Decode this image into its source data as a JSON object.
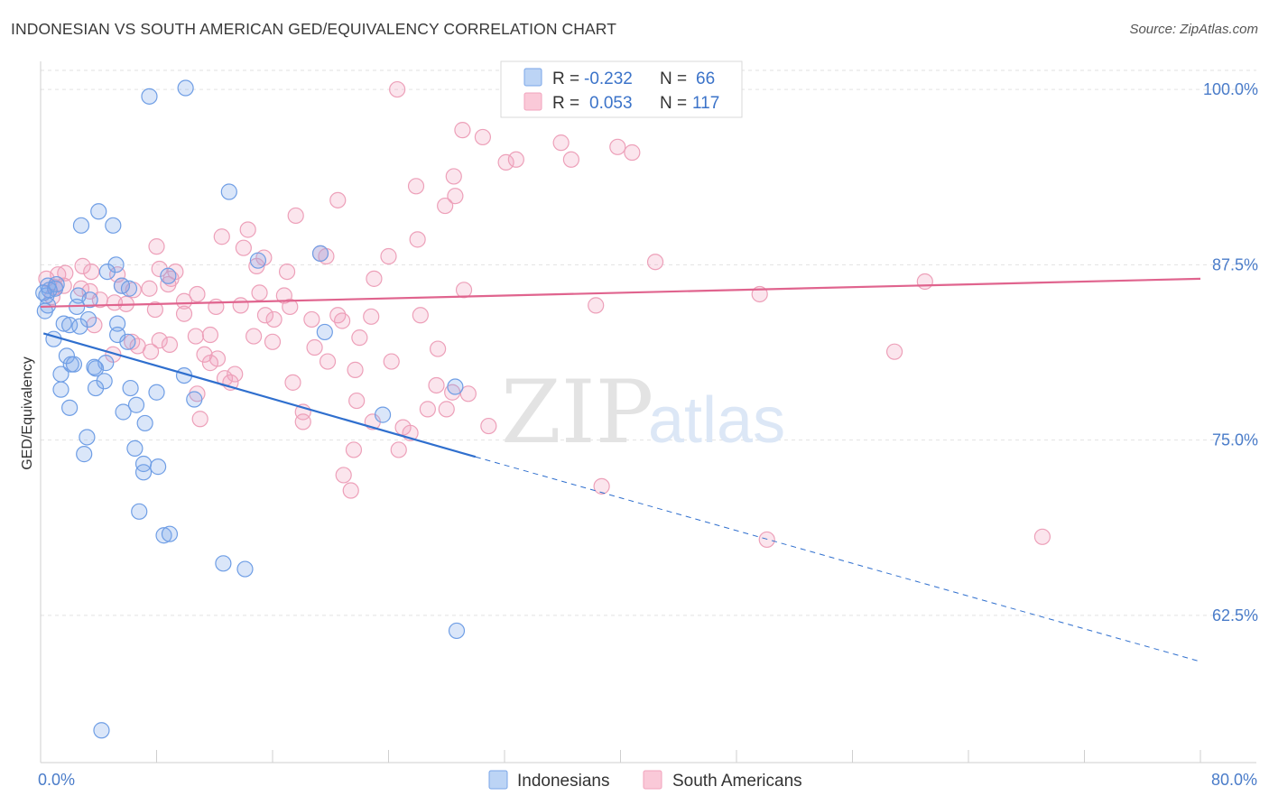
{
  "title": "INDONESIAN VS SOUTH AMERICAN GED/EQUIVALENCY CORRELATION CHART",
  "source": "Source: ZipAtlas.com",
  "watermark": {
    "zip": "ZIP",
    "atlas": "atlas"
  },
  "legend": {
    "r_label": "R =",
    "n_label": "N =",
    "rows": [
      {
        "r": "-0.232",
        "n": "66",
        "color": "#7aa6e8"
      },
      {
        "r": "0.053",
        "n": "117",
        "color": "#f2a3bd"
      }
    ]
  },
  "bottom_legend": [
    "Indonesians",
    "South Americans"
  ],
  "chart_data": {
    "type": "scatter",
    "title": "INDONESIAN VS SOUTH AMERICAN GED/EQUIVALENCY CORRELATION CHART",
    "xlabel": "",
    "ylabel": "GED/Equivalency",
    "xlim": [
      0,
      80
    ],
    "ylim": [
      52,
      102
    ],
    "x_tick_labels": [
      "0.0%",
      "80.0%"
    ],
    "y_ticks": [
      62.5,
      75.0,
      87.5,
      100.0
    ],
    "y_tick_labels": [
      "62.5%",
      "75.0%",
      "87.5%",
      "100.0%"
    ],
    "grid": "horizontal-dashed",
    "legend_position": "top-center",
    "series": [
      {
        "name": "Indonesians",
        "color": "#7aa6e8",
        "line_color": "#2f6fce",
        "r": -0.232,
        "n": 66,
        "trend": {
          "x0": 0.2,
          "y0": 82.6,
          "x1": 30,
          "y1": 73.8,
          "x_extend": 80,
          "y_extend": 59.2
        },
        "points": [
          [
            7.5,
            99.5
          ],
          [
            10,
            100.1
          ],
          [
            13,
            92.7
          ],
          [
            4,
            91.3
          ],
          [
            2.8,
            90.3
          ],
          [
            5,
            90.3
          ],
          [
            19.3,
            88.3
          ],
          [
            15,
            87.8
          ],
          [
            5.2,
            87.5
          ],
          [
            4.6,
            87
          ],
          [
            8.8,
            86.7
          ],
          [
            0.5,
            86
          ],
          [
            1,
            85.8
          ],
          [
            0.4,
            85.3
          ],
          [
            2.6,
            85.3
          ],
          [
            3.4,
            85
          ],
          [
            5.6,
            86
          ],
          [
            6.1,
            85.8
          ],
          [
            0.5,
            84.6
          ],
          [
            2.5,
            84.5
          ],
          [
            3.3,
            83.6
          ],
          [
            1.6,
            83.3
          ],
          [
            2,
            83.2
          ],
          [
            2.7,
            83.1
          ],
          [
            5.3,
            83.3
          ],
          [
            19.6,
            82.7
          ],
          [
            5.3,
            82.5
          ],
          [
            0.9,
            82.2
          ],
          [
            6,
            82
          ],
          [
            1.8,
            81
          ],
          [
            4.5,
            80.5
          ],
          [
            2.1,
            80.4
          ],
          [
            2.3,
            80.4
          ],
          [
            3.7,
            80.2
          ],
          [
            3.8,
            80.1
          ],
          [
            1.4,
            79.7
          ],
          [
            9.9,
            79.6
          ],
          [
            4.4,
            79.2
          ],
          [
            1.4,
            78.6
          ],
          [
            3.8,
            78.7
          ],
          [
            6.2,
            78.7
          ],
          [
            8,
            78.4
          ],
          [
            28.6,
            78.8
          ],
          [
            10.6,
            77.9
          ],
          [
            6.6,
            77.5
          ],
          [
            2,
            77.3
          ],
          [
            5.7,
            77
          ],
          [
            7.2,
            76.2
          ],
          [
            23.6,
            76.8
          ],
          [
            3.2,
            75.2
          ],
          [
            6.5,
            74.4
          ],
          [
            3,
            74
          ],
          [
            7.1,
            73.3
          ],
          [
            8.1,
            73.1
          ],
          [
            7.1,
            72.7
          ],
          [
            6.8,
            69.9
          ],
          [
            8.5,
            68.2
          ],
          [
            8.9,
            68.3
          ],
          [
            12.6,
            66.2
          ],
          [
            14.1,
            65.8
          ],
          [
            28.7,
            61.4
          ],
          [
            4.2,
            54.3
          ],
          [
            0.3,
            84.2
          ],
          [
            1.1,
            86.1
          ],
          [
            0.6,
            85.7
          ],
          [
            0.2,
            85.5
          ]
        ]
      },
      {
        "name": "South Americans",
        "color": "#f2a3bd",
        "line_color": "#e0648e",
        "r": 0.053,
        "n": 117,
        "trend": {
          "x0": 0,
          "y0": 84.5,
          "x1": 80,
          "y1": 86.5
        },
        "points": [
          [
            24.6,
            100
          ],
          [
            32.6,
            100
          ],
          [
            39.2,
            99.5
          ],
          [
            29.1,
            97.1
          ],
          [
            30.5,
            96.6
          ],
          [
            35.9,
            96.2
          ],
          [
            39.8,
            95.9
          ],
          [
            40.8,
            95.5
          ],
          [
            32.1,
            94.8
          ],
          [
            32.8,
            95
          ],
          [
            36.6,
            95
          ],
          [
            28.5,
            93.8
          ],
          [
            25.9,
            93.1
          ],
          [
            28.6,
            92.4
          ],
          [
            20.5,
            92.1
          ],
          [
            27.9,
            91.7
          ],
          [
            17.6,
            91
          ],
          [
            14.3,
            90
          ],
          [
            12.5,
            89.5
          ],
          [
            26,
            89.3
          ],
          [
            14,
            88.7
          ],
          [
            8,
            88.8
          ],
          [
            19.3,
            88.3
          ],
          [
            19.7,
            88.1
          ],
          [
            24,
            88.1
          ],
          [
            15.4,
            88
          ],
          [
            42.4,
            87.7
          ],
          [
            2.9,
            87.4
          ],
          [
            3.5,
            87
          ],
          [
            8.2,
            87.2
          ],
          [
            9.3,
            87
          ],
          [
            17,
            87
          ],
          [
            1.2,
            86.8
          ],
          [
            1.7,
            86.9
          ],
          [
            5.3,
            86.8
          ],
          [
            9,
            86.5
          ],
          [
            23,
            86.5
          ],
          [
            61,
            86.3
          ],
          [
            1,
            85.9
          ],
          [
            1.6,
            86
          ],
          [
            2.8,
            85.8
          ],
          [
            3.4,
            85.6
          ],
          [
            5.6,
            86
          ],
          [
            6.4,
            85.7
          ],
          [
            7.5,
            85.8
          ],
          [
            8.8,
            86.1
          ],
          [
            15.1,
            85.5
          ],
          [
            16.8,
            85.3
          ],
          [
            29.2,
            85.7
          ],
          [
            49.6,
            85.4
          ],
          [
            4.1,
            85
          ],
          [
            5.1,
            84.8
          ],
          [
            5.9,
            84.7
          ],
          [
            9.9,
            84.9
          ],
          [
            10.8,
            85.4
          ],
          [
            12.1,
            84.5
          ],
          [
            13.8,
            84.6
          ],
          [
            17.2,
            84.5
          ],
          [
            38.3,
            84.6
          ],
          [
            7.9,
            84.3
          ],
          [
            9.9,
            84
          ],
          [
            15.5,
            83.9
          ],
          [
            16.1,
            83.6
          ],
          [
            18.7,
            83.6
          ],
          [
            20.5,
            83.9
          ],
          [
            22.8,
            83.8
          ],
          [
            26.2,
            83.9
          ],
          [
            20.8,
            83.5
          ],
          [
            3.7,
            83.2
          ],
          [
            10.7,
            82.4
          ],
          [
            11.7,
            82.5
          ],
          [
            14.7,
            82.4
          ],
          [
            22,
            82.3
          ],
          [
            6.3,
            82
          ],
          [
            8.2,
            82.1
          ],
          [
            16,
            82
          ],
          [
            8.9,
            81.8
          ],
          [
            6.7,
            81.7
          ],
          [
            18.9,
            81.6
          ],
          [
            27.4,
            81.5
          ],
          [
            58.9,
            81.3
          ],
          [
            7.6,
            81.3
          ],
          [
            5,
            81.1
          ],
          [
            12.2,
            80.8
          ],
          [
            11.7,
            80.5
          ],
          [
            19.8,
            80.6
          ],
          [
            24.2,
            80.6
          ],
          [
            21.7,
            80
          ],
          [
            13.4,
            79.7
          ],
          [
            12.7,
            79.4
          ],
          [
            13.1,
            79.1
          ],
          [
            17.4,
            79.1
          ],
          [
            27.3,
            78.9
          ],
          [
            28.4,
            78.4
          ],
          [
            29.5,
            78.3
          ],
          [
            10.8,
            78.3
          ],
          [
            21.8,
            77.8
          ],
          [
            18.1,
            77
          ],
          [
            28,
            77.2
          ],
          [
            26.7,
            77.2
          ],
          [
            11,
            76.5
          ],
          [
            18.1,
            76.3
          ],
          [
            22.9,
            76.3
          ],
          [
            30.9,
            76
          ],
          [
            25,
            75.9
          ],
          [
            25.5,
            75.5
          ],
          [
            21.6,
            74.3
          ],
          [
            24.7,
            74.3
          ],
          [
            20.9,
            72.5
          ],
          [
            38.7,
            71.7
          ],
          [
            21.4,
            71.4
          ],
          [
            50.1,
            67.9
          ],
          [
            69.1,
            68.1
          ],
          [
            14.9,
            87.4
          ],
          [
            0.4,
            86.5
          ],
          [
            0.8,
            85.2
          ],
          [
            11.3,
            81.1
          ]
        ]
      }
    ]
  }
}
